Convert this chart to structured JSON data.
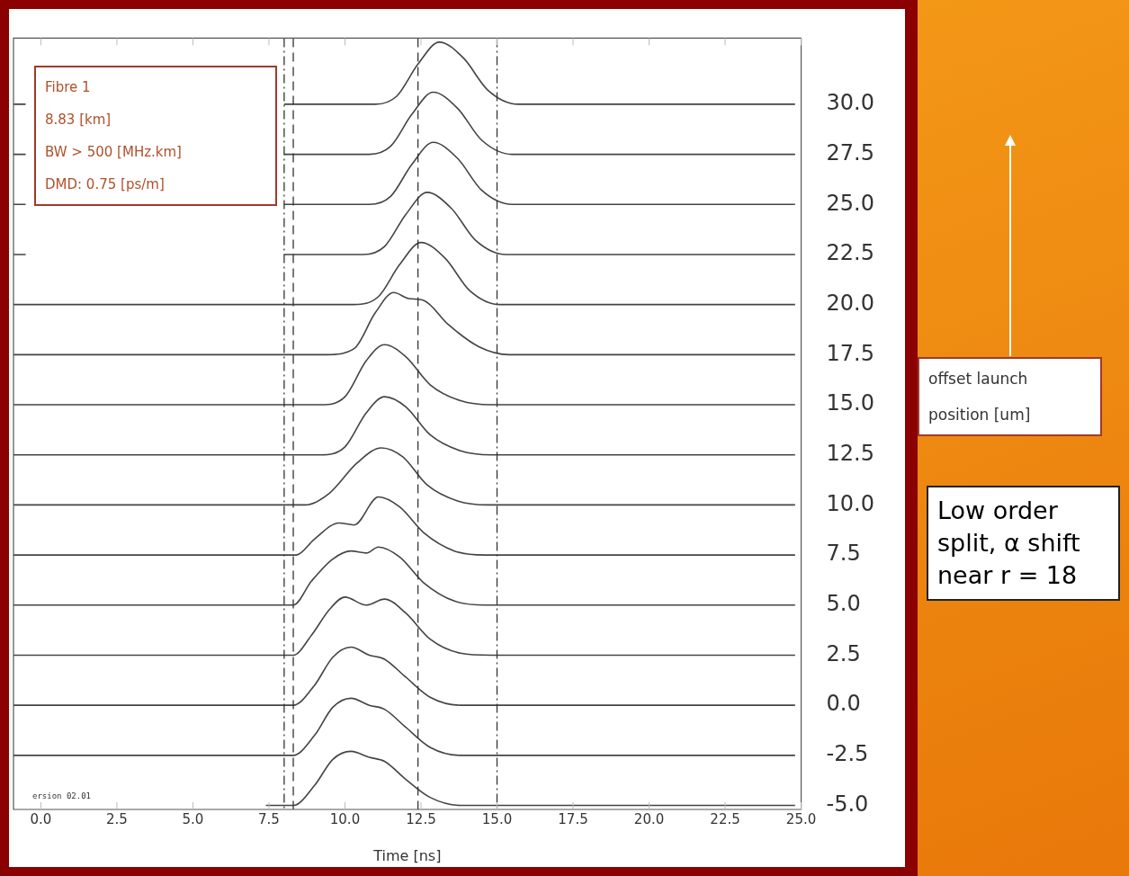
{
  "chart_data": {
    "type": "line",
    "xlabel": "Time [ns]",
    "ylabel": "offset launch position [um]",
    "xlim": [
      -0.9,
      25.0
    ],
    "xticks": [
      {
        "value": 0,
        "label": "0.0"
      },
      {
        "value": 2.5,
        "label": "2.5"
      },
      {
        "value": 5,
        "label": "5.0"
      },
      {
        "value": 7.5,
        "label": "7.5"
      },
      {
        "value": 10,
        "label": "10.0"
      },
      {
        "value": 12.5,
        "label": "12.5"
      },
      {
        "value": 15,
        "label": "15.0"
      },
      {
        "value": 17.5,
        "label": "17.5"
      },
      {
        "value": 20,
        "label": "20.0"
      },
      {
        "value": 22.5,
        "label": "22.5"
      },
      {
        "value": 25,
        "label": "25.0"
      }
    ],
    "ylim": [
      -5.2,
      33.3
    ],
    "yticks": [
      {
        "value": -5,
        "label": "-5.0"
      },
      {
        "value": -2.5,
        "label": "-2.5"
      },
      {
        "value": 0,
        "label": "0.0"
      },
      {
        "value": 2.5,
        "label": "2.5"
      },
      {
        "value": 5,
        "label": "5.0"
      },
      {
        "value": 7.5,
        "label": "7.5"
      },
      {
        "value": 10,
        "label": "10.0"
      },
      {
        "value": 12.5,
        "label": "12.5"
      },
      {
        "value": 15,
        "label": "15.0"
      },
      {
        "value": 17.5,
        "label": "17.5"
      },
      {
        "value": 20,
        "label": "20.0"
      },
      {
        "value": 22.5,
        "label": "22.5"
      },
      {
        "value": 25,
        "label": "25.0"
      },
      {
        "value": 27.5,
        "label": "27.5"
      },
      {
        "value": 30,
        "label": "30.0"
      }
    ],
    "grid": false,
    "legend": false,
    "marker": "none",
    "line_style": "solid",
    "series": [
      {
        "color": "#444444",
        "x": [
          -0.9,
          -0.5,
          3.0,
          8.0,
          11.0,
          11.7,
          12.4,
          13.1,
          13.9,
          14.7,
          15.7,
          17.0,
          24.8
        ],
        "values": [
          30,
          30,
          null,
          30,
          30,
          30.4,
          32.0,
          33.1,
          32.3,
          30.7,
          30.0,
          30.0,
          30
        ]
      },
      {
        "color": "#444444",
        "x": [
          -0.9,
          -0.5,
          3.0,
          8.0,
          10.8,
          11.5,
          12.2,
          12.9,
          13.7,
          14.5,
          15.5,
          24.8
        ],
        "values": [
          27.5,
          27.5,
          null,
          27.5,
          27.5,
          27.9,
          29.5,
          30.6,
          29.8,
          28.2,
          27.5,
          27.5
        ]
      },
      {
        "color": "#444444",
        "x": [
          -0.9,
          -0.5,
          3.0,
          8.0,
          10.8,
          11.5,
          12.2,
          12.9,
          13.7,
          14.5,
          15.5,
          24.8
        ],
        "values": [
          25,
          25,
          null,
          25,
          25,
          25.4,
          27.0,
          28.1,
          27.3,
          25.7,
          25,
          25
        ]
      },
      {
        "color": "#444444",
        "x": [
          -0.9,
          -0.5,
          3.0,
          8.0,
          10.6,
          11.3,
          12.0,
          12.7,
          13.5,
          14.3,
          15.3,
          24.8
        ],
        "values": [
          22.5,
          22.5,
          null,
          22.5,
          22.5,
          22.9,
          24.5,
          25.6,
          24.8,
          23.2,
          22.5,
          22.5
        ]
      },
      {
        "color": "#444444",
        "x": [
          -0.9,
          10.3,
          11.1,
          11.8,
          12.5,
          13.3,
          14.1,
          15.1,
          24.8
        ],
        "values": [
          20,
          20,
          20.4,
          22.0,
          23.1,
          22.3,
          20.7,
          20,
          20
        ]
      },
      {
        "color": "#444444",
        "x": [
          -0.9,
          9.4,
          10.3,
          11.0,
          11.6,
          12.1,
          12.6,
          13.4,
          14.4,
          15.4,
          24.8
        ],
        "values": [
          17.5,
          17.5,
          17.8,
          19.6,
          20.6,
          20.3,
          20.2,
          19.0,
          17.9,
          17.5,
          17.5
        ]
      },
      {
        "color": "#444444",
        "x": [
          -0.9,
          9.2,
          10.0,
          10.7,
          11.3,
          12.0,
          12.8,
          13.8,
          14.8,
          24.8
        ],
        "values": [
          15,
          15,
          15.4,
          17.2,
          18.0,
          17.4,
          16.0,
          15.2,
          15,
          15
        ]
      },
      {
        "color": "#444444",
        "x": [
          -0.9,
          9.2,
          10.0,
          10.7,
          11.3,
          12.0,
          12.8,
          13.8,
          14.8,
          24.8
        ],
        "values": [
          12.5,
          12.5,
          12.9,
          14.6,
          15.4,
          14.9,
          13.5,
          12.7,
          12.5,
          12.5
        ]
      },
      {
        "color": "#444444",
        "x": [
          -0.9,
          8.7,
          9.5,
          10.4,
          11.2,
          11.9,
          12.7,
          13.7,
          14.7,
          24.8
        ],
        "values": [
          10,
          10,
          10.6,
          12.1,
          12.85,
          12.4,
          11.0,
          10.2,
          10,
          10
        ]
      },
      {
        "color": "#444444",
        "x": [
          -0.9,
          8.4,
          9.0,
          9.8,
          10.3,
          11.1,
          11.8,
          12.6,
          13.6,
          14.6,
          24.8
        ],
        "values": [
          7.5,
          7.5,
          8.3,
          9.1,
          9.0,
          10.4,
          9.9,
          8.6,
          7.7,
          7.5,
          7.5
        ]
      },
      {
        "color": "#444444",
        "x": [
          -0.9,
          8.3,
          8.9,
          9.6,
          10.2,
          10.7,
          11.1,
          11.8,
          12.6,
          13.6,
          14.6,
          24.8
        ],
        "values": [
          5,
          5,
          6.2,
          7.3,
          7.7,
          7.6,
          7.9,
          7.4,
          6.1,
          5.2,
          5,
          5
        ]
      },
      {
        "color": "#444444",
        "x": [
          -0.9,
          8.3,
          8.9,
          9.5,
          10.0,
          10.7,
          11.3,
          12.0,
          12.8,
          13.8,
          14.8,
          24.8
        ],
        "values": [
          2.5,
          2.5,
          3.5,
          4.8,
          5.4,
          5.0,
          5.3,
          4.6,
          3.3,
          2.6,
          2.5,
          2.5
        ]
      },
      {
        "color": "#444444",
        "x": [
          -0.9,
          8.3,
          9.0,
          9.6,
          10.2,
          10.8,
          11.3,
          12.0,
          12.8,
          13.8,
          24.8
        ],
        "values": [
          0,
          0,
          1.0,
          2.4,
          2.9,
          2.5,
          2.3,
          1.4,
          0.4,
          0,
          0
        ]
      },
      {
        "color": "#444444",
        "x": [
          -0.9,
          8.3,
          9.0,
          9.6,
          10.2,
          10.8,
          11.3,
          12.0,
          12.8,
          13.8,
          24.8
        ],
        "values": [
          -2.5,
          -2.5,
          -1.5,
          -0.1,
          0.35,
          0,
          -0.2,
          -1.1,
          -2.1,
          -2.5,
          -2.5
        ]
      },
      {
        "color": "#444444",
        "x": [
          7.4,
          8.3,
          9.0,
          9.6,
          10.2,
          10.8,
          11.3,
          12.0,
          12.8,
          13.8,
          24.8
        ],
        "values": [
          -5,
          -5,
          -4.0,
          -2.7,
          -2.3,
          -2.6,
          -2.8,
          -3.7,
          -4.6,
          -5,
          -5
        ]
      }
    ],
    "ref_lines": [
      {
        "axis": "x",
        "value": 8.0,
        "line_style": "dotted",
        "color": "#333333"
      },
      {
        "axis": "x",
        "value": 15.0,
        "line_style": "dotted",
        "color": "#333333"
      },
      {
        "axis": "x",
        "value": 8.3,
        "line_style": "dashed",
        "color": "#333333"
      },
      {
        "axis": "x",
        "value": 12.4,
        "line_style": "dashed",
        "color": "#333333"
      }
    ],
    "annotations": [
      "Fibre 1",
      "8.83 [km]",
      "BW > 500 [MHz.km]",
      "DMD: 0.75 [ps/m]",
      "Low order split, α shift near r = 18",
      "ersion 02.01"
    ]
  }
}
